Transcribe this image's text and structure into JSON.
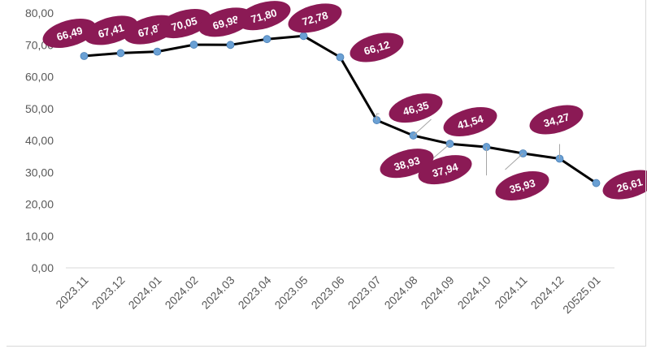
{
  "chart_data": {
    "type": "line",
    "title": "",
    "xlabel": "",
    "ylabel": "",
    "categories": [
      "2023.11",
      "2023.12",
      "2024.01",
      "2024.02",
      "2024.03",
      "2023.04",
      "2023.05",
      "2023.06",
      "2023.07",
      "2024.08",
      "2024.09",
      "2024.10",
      "2024.11",
      "2024.12",
      "20525.01"
    ],
    "series": [
      {
        "values": [
          66.49,
          67.41,
          67.87,
          70.05,
          69.98,
          71.8,
          72.78,
          66.12,
          46.35,
          41.54,
          38.93,
          37.94,
          35.93,
          34.27,
          26.61
        ],
        "labels": [
          "66,49",
          "67,41",
          "67,87",
          "70,05",
          "69,98",
          "71,80",
          "72,78",
          "66,12",
          "46,35",
          "41,54",
          "38,93",
          "37,94",
          "35,93",
          "34,27",
          "26,61"
        ]
      }
    ],
    "ylim": [
      0,
      80
    ],
    "y_ticks": [
      "0,00",
      "10,00",
      "20,00",
      "30,00",
      "40,00",
      "50,00",
      "60,00",
      "70,00",
      "80,00"
    ],
    "grid": false,
    "legend": "none",
    "colors": {
      "line": "#000000",
      "marker": "#6aa0d4",
      "label_bubble": "#8b1a55",
      "label_text": "#ffffff",
      "axis": "#d9d9d9",
      "tick_text": "#595959",
      "leader": "#a6a6a6"
    }
  }
}
